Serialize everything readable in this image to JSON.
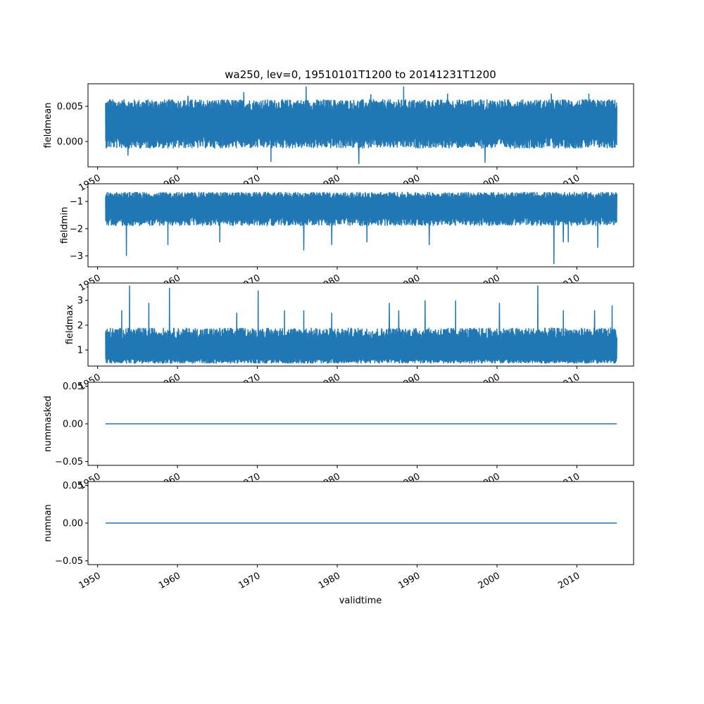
{
  "chart_data": {
    "type": "line",
    "title": "wa250, lev=0, 19510101T1200 to 20141231T1200",
    "xlabel": "validtime",
    "x_range_years": [
      1951.0,
      2015.0
    ],
    "xlim": [
      1948.8,
      2017.1
    ],
    "xticks": [
      1950,
      1960,
      1970,
      1980,
      1990,
      2000,
      2010
    ],
    "xtick_labels": [
      "1950",
      "1960",
      "1970",
      "1980",
      "1990",
      "2000",
      "2010"
    ],
    "line_color": "#1f77b4",
    "grid": false,
    "legend": "none",
    "panels": [
      {
        "ylabel": "fieldmean",
        "ylim": [
          -0.0036,
          0.0082
        ],
        "yticks": [
          0.0,
          0.005
        ],
        "ytick_labels": [
          "0.000",
          "0.005"
        ],
        "series": {
          "base": 0.0025,
          "low_band": -0.001,
          "high_band": 0.006,
          "spikes": [
            [
              1951.5,
              0.006
            ],
            [
              1953.8,
              -0.002
            ],
            [
              1961.3,
              0.0065
            ],
            [
              1968.3,
              0.007
            ],
            [
              1971.7,
              -0.0029
            ],
            [
              1976.1,
              0.0078
            ],
            [
              1982.7,
              -0.0032
            ],
            [
              1984.2,
              0.0067
            ],
            [
              1988.3,
              0.0078
            ],
            [
              1993.8,
              0.0068
            ],
            [
              1998.5,
              -0.003
            ],
            [
              2006.8,
              0.0068
            ],
            [
              2011.5,
              0.0068
            ],
            [
              2014.8,
              0.0045
            ]
          ]
        }
      },
      {
        "ylabel": "fieldmin",
        "ylim": [
          -3.4,
          -0.35
        ],
        "yticks": [
          -3,
          -2,
          -1
        ],
        "ytick_labels": [
          "−3",
          "−2",
          "−1"
        ],
        "series": {
          "base": -1.2,
          "low_band": -1.9,
          "high_band": -0.65,
          "spikes": [
            [
              1953.6,
              -3.0
            ],
            [
              1958.8,
              -2.6
            ],
            [
              1965.3,
              -2.5
            ],
            [
              1975.8,
              -2.8
            ],
            [
              1979.3,
              -2.6
            ],
            [
              1983.7,
              -2.5
            ],
            [
              1991.5,
              -2.6
            ],
            [
              2007.1,
              -3.3
            ],
            [
              2008.3,
              -2.5
            ],
            [
              2008.9,
              -2.5
            ],
            [
              2012.6,
              -2.7
            ]
          ]
        }
      },
      {
        "ylabel": "fieldmax",
        "ylim": [
          0.35,
          3.7
        ],
        "yticks": [
          1,
          2,
          3
        ],
        "ytick_labels": [
          "1",
          "2",
          "3"
        ],
        "series": {
          "base": 0.9,
          "low_band": 0.45,
          "high_band": 1.9,
          "spikes": [
            [
              1953.0,
              2.6
            ],
            [
              1954.0,
              3.6
            ],
            [
              1956.4,
              2.9
            ],
            [
              1959.0,
              3.5
            ],
            [
              1967.4,
              2.5
            ],
            [
              1970.1,
              3.4
            ],
            [
              1973.4,
              2.6
            ],
            [
              1975.8,
              2.6
            ],
            [
              1979.3,
              2.5
            ],
            [
              1986.5,
              2.9
            ],
            [
              1987.7,
              2.6
            ],
            [
              1991.0,
              3.0
            ],
            [
              1994.8,
              3.0
            ],
            [
              2000.3,
              2.9
            ],
            [
              2005.1,
              3.6
            ],
            [
              2008.3,
              2.6
            ],
            [
              2012.2,
              2.6
            ],
            [
              2014.4,
              2.8
            ]
          ]
        }
      },
      {
        "ylabel": "nummasked",
        "ylim": [
          -0.055,
          0.055
        ],
        "yticks": [
          -0.05,
          0.0,
          0.05
        ],
        "ytick_labels": [
          "−0.05",
          "0.00",
          "0.05"
        ],
        "series": {
          "constant": 0.0
        }
      },
      {
        "ylabel": "numnan",
        "ylim": [
          -0.055,
          0.055
        ],
        "yticks": [
          -0.05,
          0.0,
          0.05
        ],
        "ytick_labels": [
          "−0.05",
          "0.00",
          "0.05"
        ],
        "series": {
          "constant": 0.0
        }
      }
    ]
  }
}
